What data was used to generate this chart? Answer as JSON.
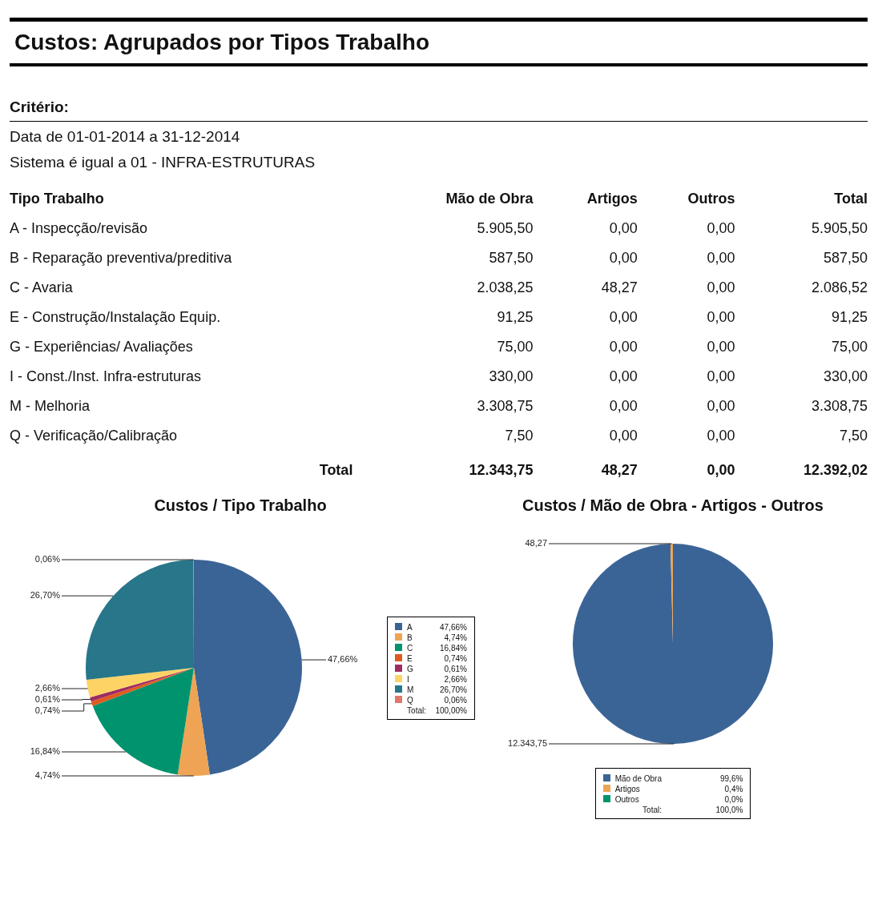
{
  "chart_data": [
    {
      "type": "other",
      "title": "Custos: Agrupados por Tipos Trabalho",
      "annotations": [
        "Critério:",
        "Data de 01-01-2014 a 31-12-2014",
        "Sistema é igual a 01 - INFRA-ESTRUTURAS",
        "Tipo Trabalho",
        "Mão de Obra",
        "Artigos",
        "Outros",
        "Total",
        "A - Inspecção/revisão",
        "5.905,50",
        "0,00",
        "0,00",
        "5.905,50",
        "B - Reparação preventiva/preditiva",
        "587,50",
        "0,00",
        "0,00",
        "587,50",
        "C - Avaria",
        "2.038,25",
        "48,27",
        "0,00",
        "2.086,52",
        "E - Construção/Instalação Equip.",
        "91,25",
        "0,00",
        "0,00",
        "91,25",
        "G - Experiências/ Avaliações",
        "75,00",
        "0,00",
        "0,00",
        "75,00",
        "I - Const./Inst.  Infra-estruturas",
        "330,00",
        "0,00",
        "0,00",
        "330,00",
        "M - Melhoria",
        "3.308,75",
        "0,00",
        "0,00",
        "3.308,75",
        "Q - Verificação/Calibração",
        "7,50",
        "0,00",
        "0,00",
        "7,50",
        "Total",
        "12.343,75",
        "48,27",
        "0,00",
        "12.392,02"
      ]
    },
    {
      "type": "pie",
      "title": "Custos / Tipo Trabalho",
      "categories": [
        "A",
        "B",
        "C",
        "E",
        "G",
        "I",
        "M",
        "Q"
      ],
      "values": [
        47.66,
        4.74,
        16.84,
        0.74,
        0.61,
        2.66,
        26.7,
        0.06
      ],
      "colors": [
        "#3b6496",
        "#eea454",
        "#00936e",
        "#e05a20",
        "#9e2b63",
        "#fdd366",
        "#277689",
        "#e0776a"
      ],
      "value_labels": [
        "47,66%",
        "4,74%",
        "16,84%",
        "0,74%",
        "0,61%",
        "2,66%",
        "26,70%",
        "0,06%"
      ],
      "legend": "right",
      "annotations": [
        "Total:",
        "100,00%"
      ]
    },
    {
      "type": "pie",
      "title": "Custos / Mão de Obra - Artigos - Outros",
      "categories": [
        "Mão de Obra",
        "Artigos",
        "Outros"
      ],
      "values": [
        12343.75,
        48.27,
        0
      ],
      "colors": [
        "#3b6496",
        "#eea454",
        "#00936e"
      ],
      "value_labels": [
        "12.343,75",
        "48,27",
        null
      ],
      "legend": "bottom",
      "annotations": [
        "99,6%",
        "0,4%",
        "0,0%",
        "Total:",
        "100,0%"
      ]
    }
  ]
}
